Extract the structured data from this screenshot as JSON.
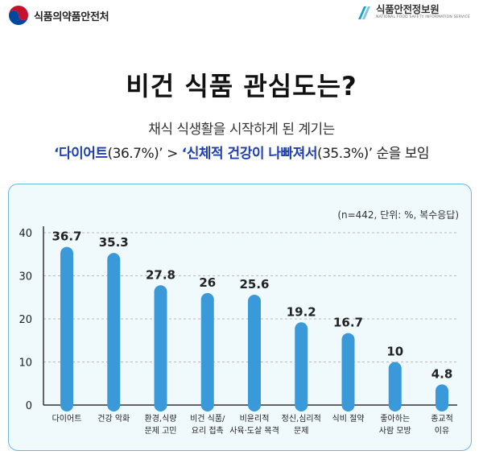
{
  "header": {
    "left_logo_text": "식품의약품안전처",
    "right_logo_name": "식품안전정보원",
    "right_logo_en": "NATIONAL FOOD SAFETY INFORMATION SERVICE"
  },
  "title": "비건 식품 관심도는?",
  "subtitle": "채식 식생활을 시작하게 된 계기는",
  "subtitle2": {
    "q_open1": "‘",
    "hl1": "다이어트",
    "pct1": "(36.7%)",
    "q_close1": "’",
    "gt": " > ",
    "q_open2": "‘",
    "hl2": "신체적 건강이 나빠져서",
    "pct2": "(35.3%)",
    "q_close2": "’",
    "rest": " 순을 보임"
  },
  "note": "(n=442, 단위: %, 복수응답)",
  "colors": {
    "bar": "#3a9ad9",
    "panel_border": "#6db7dc",
    "panel_bg": "#f0f9fc",
    "highlight": "#1f3fae"
  },
  "chart_data": {
    "type": "bar",
    "categories": [
      [
        "다이어트"
      ],
      [
        "건강 악화"
      ],
      [
        "환경,식량",
        "문제 고민"
      ],
      [
        "비건 식품/",
        "요리 접촉"
      ],
      [
        "비윤리적",
        "사육·도살 목격"
      ],
      [
        "정신,심리적",
        "문제"
      ],
      [
        "식비 절약"
      ],
      [
        "좋아하는",
        "사람 모방"
      ],
      [
        "종교적",
        "이유"
      ]
    ],
    "values": [
      36.7,
      35.3,
      27.8,
      26,
      25.6,
      19.2,
      16.7,
      10,
      4.8
    ],
    "data_labels": [
      "36.7",
      "35.3",
      "27.8",
      "26",
      "25.6",
      "19.2",
      "16.7",
      "10",
      "4.8"
    ],
    "yticks": [
      0,
      10,
      20,
      30,
      40
    ],
    "ylim": [
      0,
      40
    ],
    "unit": "%"
  }
}
